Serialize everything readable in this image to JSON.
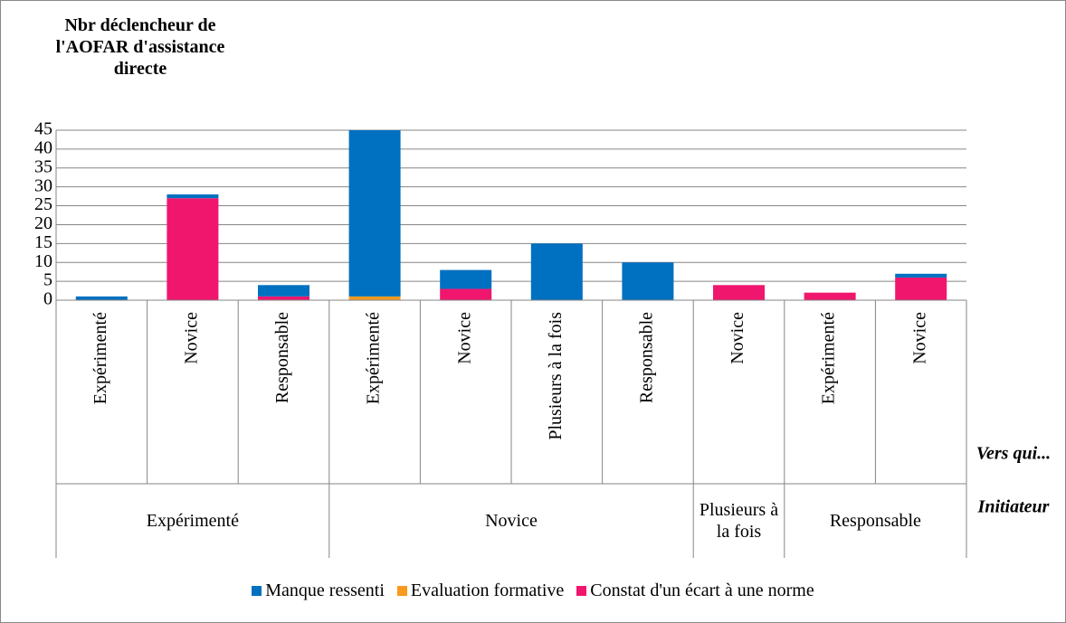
{
  "chart_data": {
    "type": "bar",
    "stacked": true,
    "y_label": "Nbr déclencheur de l'AOFAR d'assistance directe",
    "categories": [
      "Expérimenté",
      "Novice",
      "Responsable",
      "Expérimenté",
      "Novice",
      "Plusieurs à la fois",
      "Responsable",
      "Novice",
      "Expérimenté",
      "Novice"
    ],
    "groups": [
      {
        "label": "Expérimenté",
        "span": 3
      },
      {
        "label": "Novice",
        "span": 4
      },
      {
        "label": "Plusieurs à la fois",
        "span": 1
      },
      {
        "label": "Responsable",
        "span": 2
      }
    ],
    "x_level_labels": [
      "Vers qui...",
      "Initiateur"
    ],
    "series": [
      {
        "name": "Manque ressenti",
        "color": "#0070c0",
        "values": [
          1,
          1,
          3,
          44,
          5,
          15,
          10,
          0,
          0,
          1
        ]
      },
      {
        "name": "Evaluation formative",
        "color": "#f79a1e",
        "values": [
          0,
          0,
          0,
          1,
          0,
          0,
          0,
          0,
          0,
          0
        ]
      },
      {
        "name": "Constat d'un écart à une norme",
        "color": "#f0166e",
        "values": [
          0,
          27,
          1,
          0,
          3,
          0,
          0,
          4,
          2,
          6
        ]
      }
    ],
    "ylim": [
      0,
      45
    ],
    "yticks": [
      0,
      5,
      10,
      15,
      20,
      25,
      30,
      35,
      40,
      45
    ],
    "grid": true,
    "legend": "bottom"
  }
}
